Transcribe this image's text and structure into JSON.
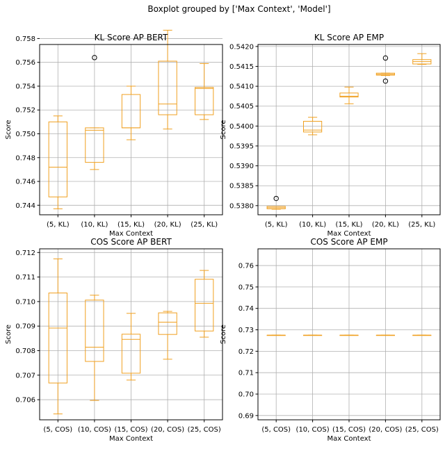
{
  "figure": {
    "suptitle": "Boxplot grouped by ['Max Context', 'Model']"
  },
  "chart_data": [
    {
      "type": "box",
      "title": "KL Score AP BERT",
      "xlabel": "Max Context",
      "ylabel": "Score",
      "categories": [
        "(5, KL)",
        "(10, KL)",
        "(15, KL)",
        "(20, KL)",
        "(25, KL)"
      ],
      "ylim": [
        0.7432,
        0.7575
      ],
      "yticks": [
        0.744,
        0.746,
        0.748,
        0.75,
        0.752,
        0.754,
        0.756,
        0.758
      ],
      "ytick_labels": [
        "0.744",
        "0.746",
        "0.748",
        "0.750",
        "0.752",
        "0.754",
        "0.756",
        "0.758"
      ],
      "grid": true,
      "boxes": [
        {
          "whislo": 0.7437,
          "q1": 0.7447,
          "med": 0.7472,
          "q3": 0.751,
          "whishi": 0.7515,
          "fliers": []
        },
        {
          "whislo": 0.747,
          "q1": 0.7476,
          "med": 0.7503,
          "q3": 0.7505,
          "whishi": 0.7505,
          "fliers": [
            0.7564
          ]
        },
        {
          "whislo": 0.7495,
          "q1": 0.7505,
          "med": 0.7505,
          "q3": 0.7533,
          "whishi": 0.754,
          "fliers": []
        },
        {
          "whislo": 0.7504,
          "q1": 0.7516,
          "med": 0.7525,
          "q3": 0.7561,
          "whishi": 0.7587,
          "fliers": []
        },
        {
          "whislo": 0.7512,
          "q1": 0.7516,
          "med": 0.7538,
          "q3": 0.7539,
          "whishi": 0.7559,
          "fliers": []
        }
      ]
    },
    {
      "type": "box",
      "title": "KL Score AP EMP",
      "xlabel": "Max Context",
      "ylabel": "Score",
      "categories": [
        "(5, KL)",
        "(10, KL)",
        "(15, KL)",
        "(20, KL)",
        "(25, KL)"
      ],
      "ylim": [
        0.53777,
        0.54205
      ],
      "yticks": [
        0.538,
        0.5385,
        0.539,
        0.5395,
        0.54,
        0.5405,
        0.541,
        0.5415,
        0.542
      ],
      "ytick_labels": [
        "0.5380",
        "0.5385",
        "0.5390",
        "0.5395",
        "0.5400",
        "0.5405",
        "0.5410",
        "0.5415",
        "0.5420"
      ],
      "grid": true,
      "boxes": [
        {
          "whislo": 0.53791,
          "q1": 0.53792,
          "med": 0.53795,
          "q3": 0.53798,
          "whishi": 0.53798,
          "fliers": [
            0.53818
          ]
        },
        {
          "whislo": 0.53978,
          "q1": 0.53985,
          "med": 0.5399,
          "q3": 0.54012,
          "whishi": 0.54022,
          "fliers": []
        },
        {
          "whislo": 0.54056,
          "q1": 0.54073,
          "med": 0.54075,
          "q3": 0.54083,
          "whishi": 0.54098,
          "fliers": []
        },
        {
          "whislo": 0.54127,
          "q1": 0.54128,
          "med": 0.5413,
          "q3": 0.54133,
          "whishi": 0.54133,
          "fliers": [
            0.54113,
            0.54171
          ]
        },
        {
          "whislo": 0.54155,
          "q1": 0.54156,
          "med": 0.54162,
          "q3": 0.54167,
          "whishi": 0.54182,
          "fliers": []
        }
      ]
    },
    {
      "type": "box",
      "title": "COS Score AP BERT",
      "xlabel": "Max Context",
      "ylabel": "Score",
      "categories": [
        "(5, COS)",
        "(10, COS)",
        "(15, COS)",
        "(20, COS)",
        "(25, COS)"
      ],
      "ylim": [
        0.70518,
        0.71215
      ],
      "yticks": [
        0.706,
        0.707,
        0.708,
        0.709,
        0.71,
        0.711,
        0.712
      ],
      "ytick_labels": [
        "0.706",
        "0.707",
        "0.708",
        "0.709",
        "0.710",
        "0.711",
        "0.712"
      ],
      "grid": true,
      "boxes": [
        {
          "whislo": 0.70542,
          "q1": 0.70668,
          "med": 0.70892,
          "q3": 0.71035,
          "whishi": 0.71174,
          "fliers": []
        },
        {
          "whislo": 0.70597,
          "q1": 0.70756,
          "med": 0.70814,
          "q3": 0.71006,
          "whishi": 0.71026,
          "fliers": []
        },
        {
          "whislo": 0.7068,
          "q1": 0.70708,
          "med": 0.70846,
          "q3": 0.70867,
          "whishi": 0.70952,
          "fliers": []
        },
        {
          "whislo": 0.70765,
          "q1": 0.70866,
          "med": 0.70916,
          "q3": 0.70954,
          "whishi": 0.7096,
          "fliers": []
        },
        {
          "whislo": 0.70855,
          "q1": 0.7088,
          "med": 0.70993,
          "q3": 0.71091,
          "whishi": 0.71127,
          "fliers": []
        }
      ]
    },
    {
      "type": "box",
      "title": "COS Score AP EMP",
      "xlabel": "Max Context",
      "ylabel": "Score",
      "categories": [
        "(5, COS)",
        "(10, COS)",
        "(15, COS)",
        "(20, COS)",
        "(25, COS)"
      ],
      "ylim": [
        0.688,
        0.7678
      ],
      "yticks": [
        0.69,
        0.7,
        0.71,
        0.72,
        0.73,
        0.74,
        0.75,
        0.76
      ],
      "ytick_labels": [
        "0.69",
        "0.70",
        "0.71",
        "0.72",
        "0.73",
        "0.74",
        "0.75",
        "0.76"
      ],
      "grid": true,
      "boxes": [
        {
          "whislo": 0.7275,
          "q1": 0.7275,
          "med": 0.7275,
          "q3": 0.7275,
          "whishi": 0.7275,
          "fliers": []
        },
        {
          "whislo": 0.7275,
          "q1": 0.7275,
          "med": 0.7275,
          "q3": 0.7275,
          "whishi": 0.7275,
          "fliers": []
        },
        {
          "whislo": 0.7275,
          "q1": 0.7275,
          "med": 0.7275,
          "q3": 0.7275,
          "whishi": 0.7275,
          "fliers": []
        },
        {
          "whislo": 0.7275,
          "q1": 0.7275,
          "med": 0.7275,
          "q3": 0.7275,
          "whishi": 0.7275,
          "fliers": []
        },
        {
          "whislo": 0.7275,
          "q1": 0.7275,
          "med": 0.7275,
          "q3": 0.7275,
          "whishi": 0.7275,
          "fliers": []
        }
      ]
    }
  ]
}
